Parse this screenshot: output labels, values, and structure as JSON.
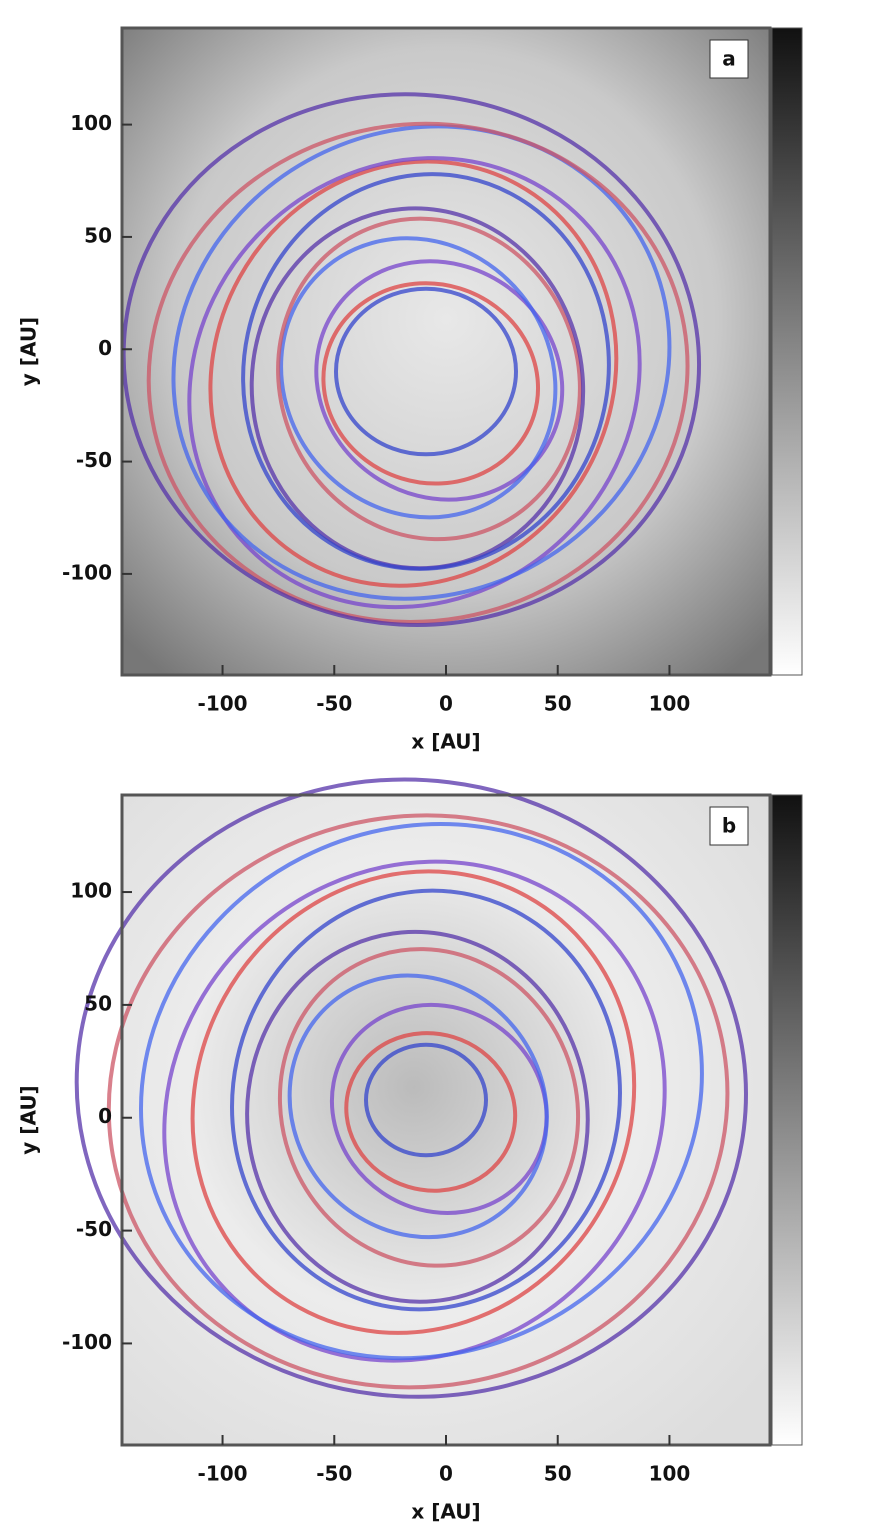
{
  "chart_data": [
    {
      "type": "image",
      "panel_label": "a",
      "xlabel": "x [AU]",
      "ylabel": "y [AU]",
      "xlim": [
        -145,
        145
      ],
      "ylim": [
        -145,
        143
      ],
      "xticks": [
        -100,
        -50,
        0,
        50,
        100
      ],
      "yticks": [
        -100,
        -50,
        0,
        50,
        100
      ]
    },
    {
      "type": "image",
      "panel_label": "b",
      "xlabel": "x [AU]",
      "ylabel": "y [AU]",
      "xlim": [
        -145,
        145
      ],
      "ylim": [
        -145,
        143
      ],
      "xticks": [
        -100,
        -50,
        0,
        50,
        100
      ],
      "yticks": [
        -100,
        -50,
        0,
        50,
        100
      ]
    }
  ]
}
